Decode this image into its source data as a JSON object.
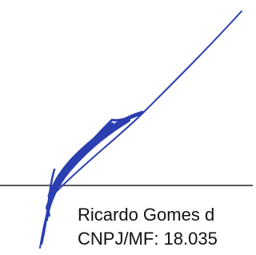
{
  "signature_block": {
    "lines": [
      "Ricardo Gomes d",
      "CNPJ/MF: 18.035"
    ]
  }
}
